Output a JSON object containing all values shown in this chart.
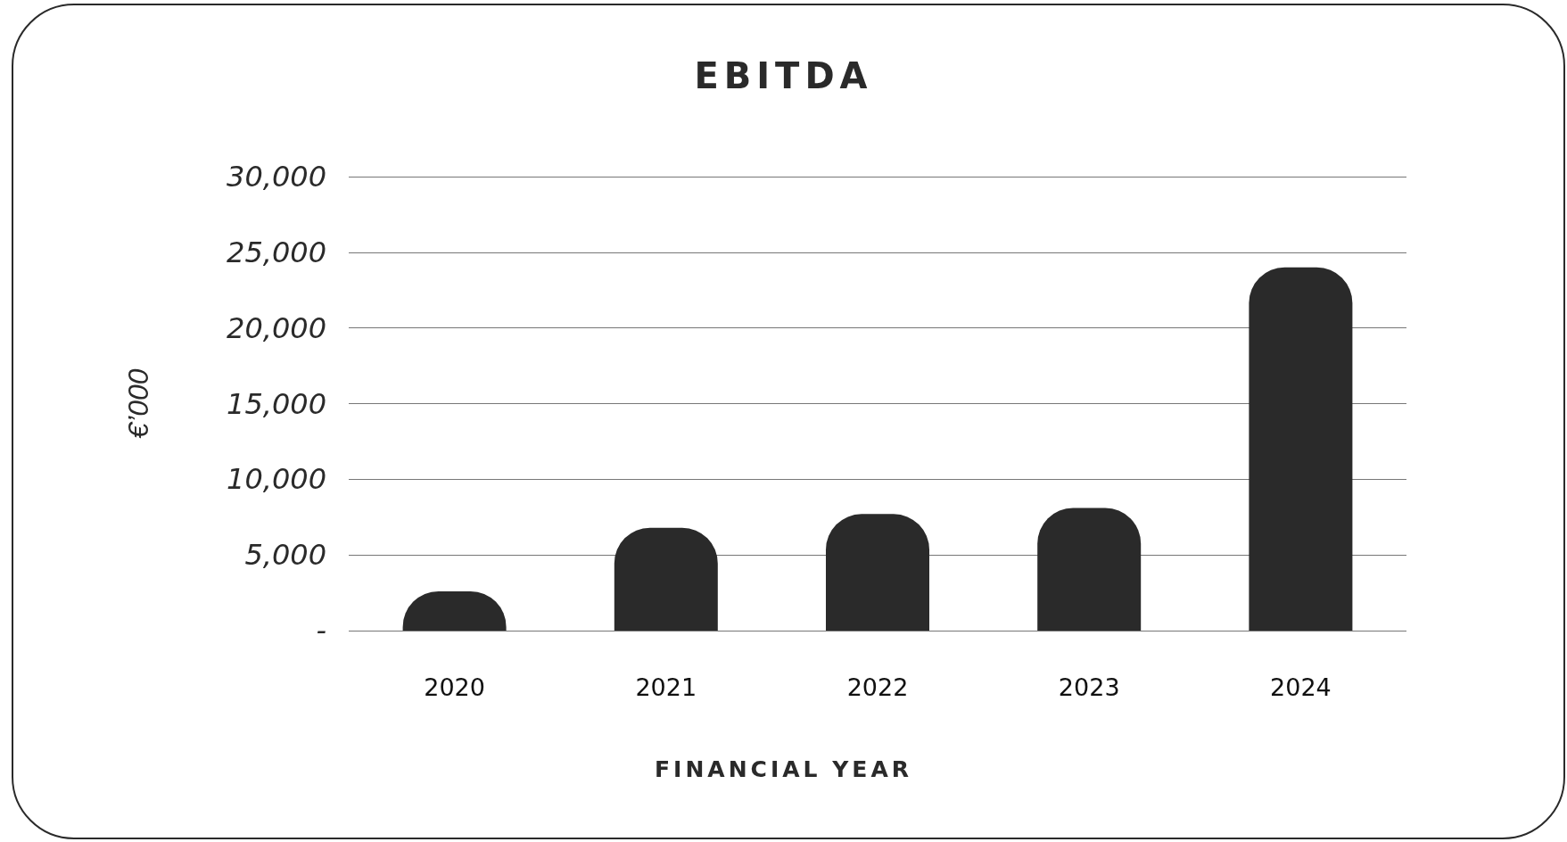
{
  "chart_data": {
    "type": "bar",
    "title": "EBITDA",
    "xlabel": "FINANCIAL YEAR",
    "ylabel": "€’000",
    "categories": [
      "2020",
      "2021",
      "2022",
      "2023",
      "2024"
    ],
    "values": [
      2600,
      6800,
      7700,
      8100,
      24000
    ],
    "color": "#2a2a2a",
    "ylim": [
      0,
      30000
    ],
    "yticks": [
      {
        "value": 0,
        "label": "-"
      },
      {
        "value": 5000,
        "label": "5,000"
      },
      {
        "value": 10000,
        "label": "10,000"
      },
      {
        "value": 15000,
        "label": "15,000"
      },
      {
        "value": 20000,
        "label": "20,000"
      },
      {
        "value": 25000,
        "label": "25,000"
      },
      {
        "value": 30000,
        "label": "30,000"
      }
    ],
    "grid": "y"
  }
}
